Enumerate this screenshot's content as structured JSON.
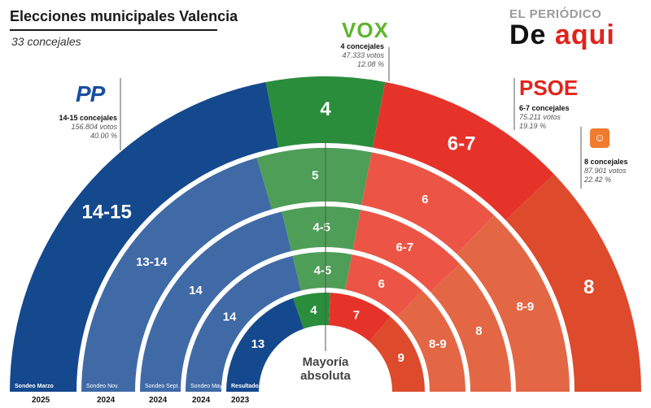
{
  "header": {
    "title": "Elecciones municipales Valencia",
    "subtitle": "33 concejales"
  },
  "brand": {
    "top": "EL PERIÓDICO",
    "bottom_a": "De ",
    "bottom_b": "aqui"
  },
  "parties": {
    "pp": {
      "logo": "PP",
      "seats": "14-15 concejales",
      "votes": "156.804 votos",
      "pct": "40.00 %"
    },
    "vox": {
      "logo": "VOX",
      "seats": "4 concejales",
      "votes": "47.333 votos",
      "pct": "12.08 %"
    },
    "psoe": {
      "logo": "PSOE",
      "seats": "6-7 concejales",
      "votes": "75.211 votos",
      "pct": "19.19 %"
    },
    "cs": {
      "logo": "☺",
      "seats": "8 concejales",
      "votes": "87.901 votos",
      "pct": "22.42 %"
    }
  },
  "majority_label": [
    "Mayoría",
    "absoluta"
  ],
  "colors": {
    "pp": "#15498d",
    "vox": "#2a8d3c",
    "psoe": "#e6332a",
    "compromis": "#e0522a"
  },
  "chart_data": {
    "type": "semicircle-rings",
    "total_seats": 33,
    "rings": [
      {
        "name": "Sondeo Marzo",
        "year": "2025",
        "segments": [
          {
            "party": "PP",
            "label": "14-15",
            "value": 14.5,
            "color": "#15498d"
          },
          {
            "party": "VOX",
            "label": "4",
            "value": 4,
            "color": "#2a8d3c"
          },
          {
            "party": "PSOE",
            "label": "6-7",
            "value": 6.5,
            "color": "#e6332a"
          },
          {
            "party": "Compromís",
            "label": "8",
            "value": 8,
            "color": "#de4a2c"
          }
        ]
      },
      {
        "name": "Sondeo Nov.",
        "year": "2024",
        "segments": [
          {
            "party": "PP",
            "label": "13-14",
            "value": 13.5,
            "color": "#3f6aa6"
          },
          {
            "party": "VOX",
            "label": "5",
            "value": 5,
            "color": "#4e9e58"
          },
          {
            "party": "PSOE",
            "label": "6",
            "value": 6,
            "color": "#ec5546"
          },
          {
            "party": "Compromís",
            "label": "8-9",
            "value": 8.5,
            "color": "#e36745"
          }
        ]
      },
      {
        "name": "Sondeo Sept.",
        "year": "2024",
        "segments": [
          {
            "party": "PP",
            "label": "14",
            "value": 14,
            "color": "#3f6aa6"
          },
          {
            "party": "VOX",
            "label": "4-5",
            "value": 4.5,
            "color": "#4e9e58"
          },
          {
            "party": "PSOE",
            "label": "6-7",
            "value": 6.5,
            "color": "#ec5546"
          },
          {
            "party": "Compromís",
            "label": "8",
            "value": 8,
            "color": "#e36745"
          }
        ]
      },
      {
        "name": "Sondeo May.",
        "year": "2024",
        "segments": [
          {
            "party": "PP",
            "label": "14",
            "value": 14,
            "color": "#3f6aa6"
          },
          {
            "party": "VOX",
            "label": "4-5",
            "value": 4.5,
            "color": "#4e9e58"
          },
          {
            "party": "PSOE",
            "label": "6",
            "value": 6,
            "color": "#ec5546"
          },
          {
            "party": "Compromís",
            "label": "8-9",
            "value": 8.5,
            "color": "#e36745"
          }
        ]
      },
      {
        "name": "Resultado",
        "year": "2023",
        "segments": [
          {
            "party": "PP",
            "label": "13",
            "value": 13,
            "color": "#15498d"
          },
          {
            "party": "VOX",
            "label": "4",
            "value": 4,
            "color": "#2a8d3c"
          },
          {
            "party": "PSOE",
            "label": "7",
            "value": 7,
            "color": "#e6332a"
          },
          {
            "party": "Compromís",
            "label": "9",
            "value": 9,
            "color": "#de4a2c"
          }
        ]
      }
    ]
  }
}
